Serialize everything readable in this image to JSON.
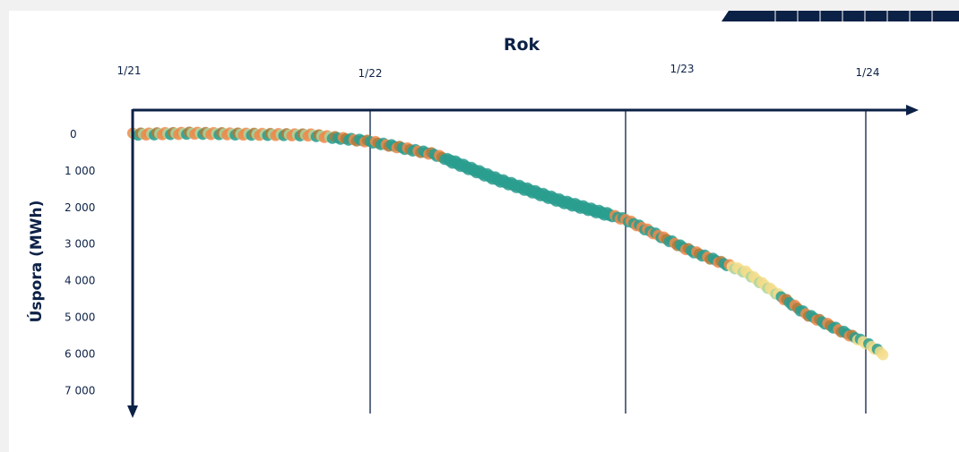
{
  "chart_data": {
    "type": "scatter",
    "title": "Rok",
    "xlabel": "Rok",
    "ylabel": "Úspora (MWh)",
    "x_axis_position": "top",
    "y_axis_inverted": true,
    "x_ticks": [
      "1/21",
      "1/22",
      "1/23",
      "1/24"
    ],
    "y_ticks": [
      "0",
      "1 000",
      "2 000",
      "3 000",
      "4 000",
      "5 000",
      "6 000",
      "7 000"
    ],
    "ylim": [
      0,
      7000
    ],
    "grid": "vertical lines at 1/22, 1/23, 1/24",
    "points": [
      {
        "x": "1/21",
        "y": 0
      },
      {
        "x": "4/21",
        "y": -30
      },
      {
        "x": "7/21",
        "y": 0
      },
      {
        "x": "10/21",
        "y": 20
      },
      {
        "x": "1/22",
        "y": 200
      },
      {
        "x": "4/22",
        "y": 550
      },
      {
        "x": "7/22",
        "y": 1250
      },
      {
        "x": "10/22",
        "y": 1850
      },
      {
        "x": "1/23",
        "y": 2350
      },
      {
        "x": "4/23",
        "y": 3150
      },
      {
        "x": "7/23",
        "y": 3800
      },
      {
        "x": "10/23",
        "y": 4950
      },
      {
        "x": "1/24",
        "y": 5750
      },
      {
        "x": "2/24",
        "y": 6100
      }
    ],
    "colors": {
      "axis": "#0c2146",
      "teal": "#2a9d8f",
      "orange": "#f08a4b",
      "light_green": "#a9d6a0",
      "yellow": "#f5dd8c",
      "olive": "#b07a3a"
    }
  }
}
